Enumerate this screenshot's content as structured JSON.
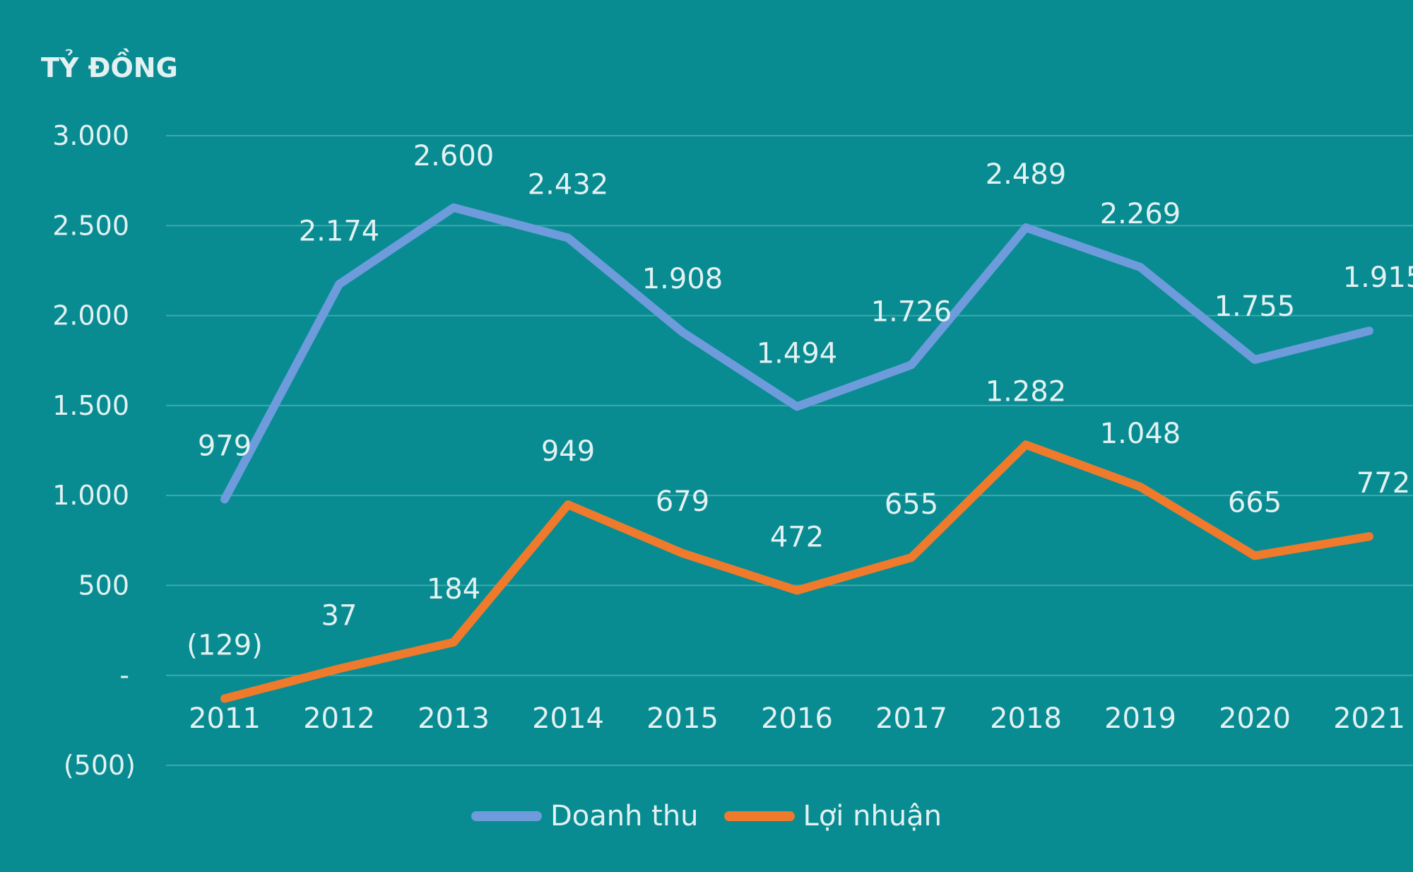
{
  "chart_data": {
    "type": "line",
    "ylabel": "TỶ ĐỒNG",
    "categories": [
      "2011",
      "2012",
      "2013",
      "2014",
      "2015",
      "2016",
      "2017",
      "2018",
      "2019",
      "2020",
      "2021"
    ],
    "ylim": [
      -500,
      3000
    ],
    "yticks": [
      {
        "value": 3000,
        "label": "3.000"
      },
      {
        "value": 2500,
        "label": "2.500"
      },
      {
        "value": 2000,
        "label": "2.000"
      },
      {
        "value": 1500,
        "label": "1.500"
      },
      {
        "value": 1000,
        "label": "1.000"
      },
      {
        "value": 500,
        "label": "500"
      },
      {
        "value": 0,
        "label": "-"
      },
      {
        "value": -500,
        "label": "(500)"
      }
    ],
    "grid": true,
    "legend_position": "bottom",
    "series": [
      {
        "name": "Doanh thu",
        "color": "#6E9BDB",
        "values": [
          979,
          2174,
          2600,
          2432,
          1908,
          1494,
          1726,
          2489,
          2269,
          1755,
          1915
        ],
        "labels": [
          "979",
          "2.174",
          "2.600",
          "2.432",
          "1.908",
          "1.494",
          "1.726",
          "2.489",
          "2.269",
          "1.755",
          "1.915"
        ]
      },
      {
        "name": "Lợi nhuận",
        "color": "#F07A2B",
        "values": [
          -129,
          37,
          184,
          949,
          679,
          472,
          655,
          1282,
          1048,
          665,
          772
        ],
        "labels": [
          "(129)",
          "37",
          "184",
          "949",
          "679",
          "472",
          "655",
          "1.282",
          "1.048",
          "665",
          "772"
        ]
      }
    ]
  },
  "colors": {
    "background": "#088C92",
    "text": "#E3F1F2",
    "gridline": "#3FA7AC"
  }
}
